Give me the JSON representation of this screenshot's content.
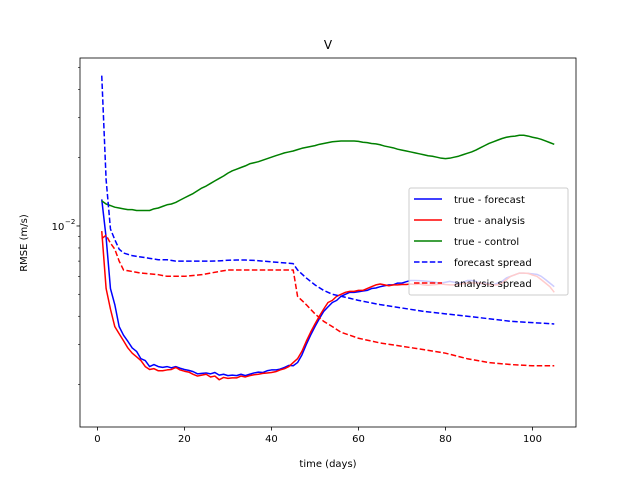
{
  "chart_data": {
    "type": "line",
    "title": "V",
    "xlabel": "time (days)",
    "ylabel": "RMSE (m/s)",
    "yscale": "log",
    "xlim": [
      -4,
      110
    ],
    "ylim": [
      0.0013,
      0.055
    ],
    "xticks": [
      0,
      20,
      40,
      60,
      80,
      100
    ],
    "yticks": [
      {
        "value": 0.01,
        "label": "10",
        "exponent": "−2"
      }
    ],
    "legend_position": "center-right",
    "grid": false,
    "series": [
      {
        "name": "true - forecast",
        "color": "#0000ff",
        "dash": "solid",
        "x": [
          1,
          2,
          3,
          4,
          5,
          6,
          7,
          8,
          9,
          10,
          11,
          12,
          13,
          14,
          15,
          16,
          17,
          18,
          19,
          20,
          21,
          22,
          23,
          24,
          25,
          26,
          27,
          28,
          29,
          30,
          31,
          32,
          33,
          34,
          35,
          36,
          37,
          38,
          39,
          40,
          41,
          42,
          43,
          44,
          45,
          46,
          47,
          48,
          49,
          50,
          51,
          52,
          53,
          54,
          55,
          56,
          57,
          58,
          59,
          60,
          61,
          62,
          63,
          64,
          65,
          66,
          67,
          68,
          69,
          70,
          71,
          72,
          73,
          74,
          75,
          76,
          77,
          78,
          79,
          80,
          81,
          82,
          83,
          84,
          85,
          86,
          87,
          88,
          89,
          90,
          91,
          92,
          93,
          94,
          95,
          96,
          97,
          98,
          99,
          100,
          101,
          102,
          103,
          104,
          105
        ],
        "y": [
          0.0131,
          0.0089,
          0.0053,
          0.0045,
          0.0036,
          0.0033,
          0.0031,
          0.0029,
          0.0028,
          0.0026,
          0.00255,
          0.0024,
          0.00245,
          0.0024,
          0.00238,
          0.0024,
          0.00237,
          0.0024,
          0.00236,
          0.00233,
          0.00231,
          0.00228,
          0.00223,
          0.00224,
          0.00225,
          0.00223,
          0.00226,
          0.0022,
          0.00222,
          0.00219,
          0.0022,
          0.00219,
          0.00222,
          0.00219,
          0.00222,
          0.00225,
          0.00227,
          0.00226,
          0.0023,
          0.00232,
          0.00232,
          0.00234,
          0.00238,
          0.00243,
          0.00242,
          0.0025,
          0.0027,
          0.003,
          0.0033,
          0.0036,
          0.0039,
          0.0042,
          0.0044,
          0.0046,
          0.0047,
          0.0049,
          0.005,
          0.0051,
          0.0051,
          0.00513,
          0.00517,
          0.0052,
          0.0053,
          0.00533,
          0.0054,
          0.00545,
          0.0055,
          0.0055,
          0.0056,
          0.0056,
          0.00568,
          0.00575,
          0.00575,
          0.00574,
          0.00572,
          0.0057,
          0.00568,
          0.00563,
          0.0056,
          0.00565,
          0.0057,
          0.00565,
          0.0056,
          0.00564,
          0.00575,
          0.00575,
          0.0057,
          0.00556,
          0.0056,
          0.00556,
          0.0055,
          0.0056,
          0.0057,
          0.0059,
          0.006,
          0.0061,
          0.0062,
          0.0062,
          0.00618,
          0.00615,
          0.00612,
          0.006,
          0.0058,
          0.0056,
          0.0054
        ]
      },
      {
        "name": "true - analysis",
        "color": "#ff0000",
        "dash": "solid",
        "x": [
          1,
          2,
          3,
          4,
          5,
          6,
          7,
          8,
          9,
          10,
          11,
          12,
          13,
          14,
          15,
          16,
          17,
          18,
          19,
          20,
          21,
          22,
          23,
          24,
          25,
          26,
          27,
          28,
          29,
          30,
          31,
          32,
          33,
          34,
          35,
          36,
          37,
          38,
          39,
          40,
          41,
          42,
          43,
          44,
          45,
          46,
          47,
          48,
          49,
          50,
          51,
          52,
          53,
          54,
          55,
          56,
          57,
          58,
          59,
          60,
          61,
          62,
          63,
          64,
          65,
          66,
          67,
          68,
          69,
          70,
          71,
          72,
          73,
          74,
          75,
          76,
          77,
          78,
          79,
          80,
          81,
          82,
          83,
          84,
          85,
          86,
          87,
          88,
          89,
          90,
          91,
          92,
          93,
          94,
          95,
          96,
          97,
          98,
          99,
          100,
          101,
          102,
          103,
          104,
          105
        ],
        "y": [
          0.0095,
          0.0053,
          0.0043,
          0.0036,
          0.00335,
          0.00312,
          0.0029,
          0.00275,
          0.00265,
          0.00255,
          0.0024,
          0.00233,
          0.00235,
          0.0023,
          0.0023,
          0.00232,
          0.00233,
          0.00238,
          0.00232,
          0.00229,
          0.00227,
          0.00222,
          0.00218,
          0.0022,
          0.00222,
          0.00216,
          0.00218,
          0.0021,
          0.00215,
          0.00213,
          0.00214,
          0.00214,
          0.00218,
          0.00216,
          0.00219,
          0.00221,
          0.00222,
          0.00224,
          0.00225,
          0.00226,
          0.00228,
          0.00232,
          0.00235,
          0.0024,
          0.0025,
          0.0026,
          0.0028,
          0.0031,
          0.0034,
          0.0037,
          0.004,
          0.0043,
          0.0046,
          0.0047,
          0.0049,
          0.005,
          0.0051,
          0.00515,
          0.00515,
          0.0052,
          0.0052,
          0.0053,
          0.0054,
          0.0055,
          0.00555,
          0.0055,
          0.00545,
          0.0055,
          0.0055,
          0.00552,
          0.00552,
          0.00555,
          0.00552,
          0.00555,
          0.0055,
          0.00548,
          0.0055,
          0.00552,
          0.00555,
          0.00552,
          0.0055,
          0.0055,
          0.00552,
          0.00557,
          0.0056,
          0.00562,
          0.0056,
          0.0056,
          0.00555,
          0.00552,
          0.0055,
          0.0055,
          0.0056,
          0.0058,
          0.006,
          0.0061,
          0.0062,
          0.0062,
          0.00618,
          0.00608,
          0.006,
          0.0058,
          0.0056,
          0.0054,
          0.0051
        ]
      },
      {
        "name": "true - control",
        "color": "#008000",
        "dash": "solid",
        "x": [
          1,
          2,
          3,
          4,
          5,
          6,
          7,
          8,
          9,
          10,
          11,
          12,
          13,
          14,
          15,
          16,
          17,
          18,
          19,
          20,
          21,
          22,
          23,
          24,
          25,
          26,
          27,
          28,
          29,
          30,
          31,
          32,
          33,
          34,
          35,
          36,
          37,
          38,
          39,
          40,
          41,
          42,
          43,
          44,
          45,
          46,
          47,
          48,
          49,
          50,
          51,
          52,
          53,
          54,
          55,
          56,
          57,
          58,
          59,
          60,
          61,
          62,
          63,
          64,
          65,
          66,
          67,
          68,
          69,
          70,
          71,
          72,
          73,
          74,
          75,
          76,
          77,
          78,
          79,
          80,
          81,
          82,
          83,
          84,
          85,
          86,
          87,
          88,
          89,
          90,
          91,
          92,
          93,
          94,
          95,
          96,
          97,
          98,
          99,
          100,
          101,
          102,
          103,
          104,
          105
        ],
        "y": [
          0.0129,
          0.0125,
          0.0123,
          0.0121,
          0.012,
          0.0119,
          0.0118,
          0.0118,
          0.0117,
          0.0117,
          0.0117,
          0.0117,
          0.0119,
          0.012,
          0.0122,
          0.0124,
          0.0125,
          0.0127,
          0.013,
          0.0133,
          0.0136,
          0.0139,
          0.0143,
          0.0147,
          0.015,
          0.0154,
          0.0158,
          0.0162,
          0.0166,
          0.0171,
          0.0175,
          0.0178,
          0.0181,
          0.0184,
          0.0188,
          0.019,
          0.0192,
          0.0195,
          0.0198,
          0.0201,
          0.0204,
          0.0207,
          0.021,
          0.0212,
          0.0214,
          0.0217,
          0.022,
          0.0222,
          0.0224,
          0.0226,
          0.0229,
          0.0231,
          0.0233,
          0.0235,
          0.0236,
          0.0237,
          0.0237,
          0.0237,
          0.0237,
          0.0236,
          0.0234,
          0.0233,
          0.0231,
          0.023,
          0.0228,
          0.0225,
          0.0223,
          0.0221,
          0.0218,
          0.0216,
          0.0214,
          0.0212,
          0.021,
          0.0208,
          0.0206,
          0.0204,
          0.0203,
          0.0201,
          0.0199,
          0.0198,
          0.0199,
          0.0201,
          0.0203,
          0.0206,
          0.0209,
          0.0212,
          0.0216,
          0.0221,
          0.0226,
          0.0231,
          0.0235,
          0.0239,
          0.0243,
          0.0246,
          0.0248,
          0.0249,
          0.0251,
          0.0251,
          0.0249,
          0.0246,
          0.0244,
          0.0241,
          0.0237,
          0.0233,
          0.0229
        ]
      },
      {
        "name": "forecast spread",
        "color": "#0000ff",
        "dash": "dashed",
        "x": [
          1,
          2,
          3,
          4,
          5,
          6,
          8,
          10,
          12,
          14,
          16,
          18,
          20,
          22,
          24,
          26,
          28,
          30,
          32,
          34,
          36,
          38,
          40,
          42,
          44,
          45,
          46,
          48,
          50,
          52,
          54,
          56,
          58,
          60,
          65,
          70,
          75,
          80,
          85,
          90,
          95,
          100,
          105
        ],
        "y": [
          0.046,
          0.016,
          0.0097,
          0.0087,
          0.0079,
          0.0076,
          0.0074,
          0.0073,
          0.0072,
          0.0071,
          0.0071,
          0.007,
          0.007,
          0.007,
          0.007,
          0.007,
          0.00702,
          0.00706,
          0.00708,
          0.00708,
          0.00705,
          0.007,
          0.00695,
          0.0069,
          0.00685,
          0.00682,
          0.0064,
          0.0059,
          0.0055,
          0.0052,
          0.005,
          0.0049,
          0.0048,
          0.0047,
          0.0045,
          0.00435,
          0.0042,
          0.0041,
          0.004,
          0.0039,
          0.0038,
          0.00375,
          0.0037
        ]
      },
      {
        "name": "analysis spread",
        "color": "#ff0000",
        "dash": "dashed",
        "x": [
          1,
          2,
          3,
          4,
          5,
          6,
          8,
          10,
          12,
          14,
          16,
          18,
          20,
          22,
          24,
          26,
          28,
          30,
          32,
          34,
          36,
          38,
          40,
          42,
          44,
          45,
          46,
          48,
          50,
          52,
          54,
          56,
          58,
          60,
          65,
          70,
          75,
          80,
          85,
          90,
          95,
          100,
          105
        ],
        "y": [
          0.0088,
          0.0091,
          0.0084,
          0.0079,
          0.007,
          0.0064,
          0.0063,
          0.0062,
          0.00615,
          0.0061,
          0.006,
          0.006,
          0.006,
          0.00605,
          0.0061,
          0.0062,
          0.0063,
          0.0064,
          0.0064,
          0.0064,
          0.0064,
          0.0064,
          0.0064,
          0.0064,
          0.0064,
          0.0064,
          0.0049,
          0.0045,
          0.0041,
          0.0038,
          0.0036,
          0.0034,
          0.0033,
          0.0032,
          0.00305,
          0.00295,
          0.00285,
          0.00275,
          0.0026,
          0.0025,
          0.00245,
          0.00242,
          0.00242
        ]
      }
    ]
  }
}
